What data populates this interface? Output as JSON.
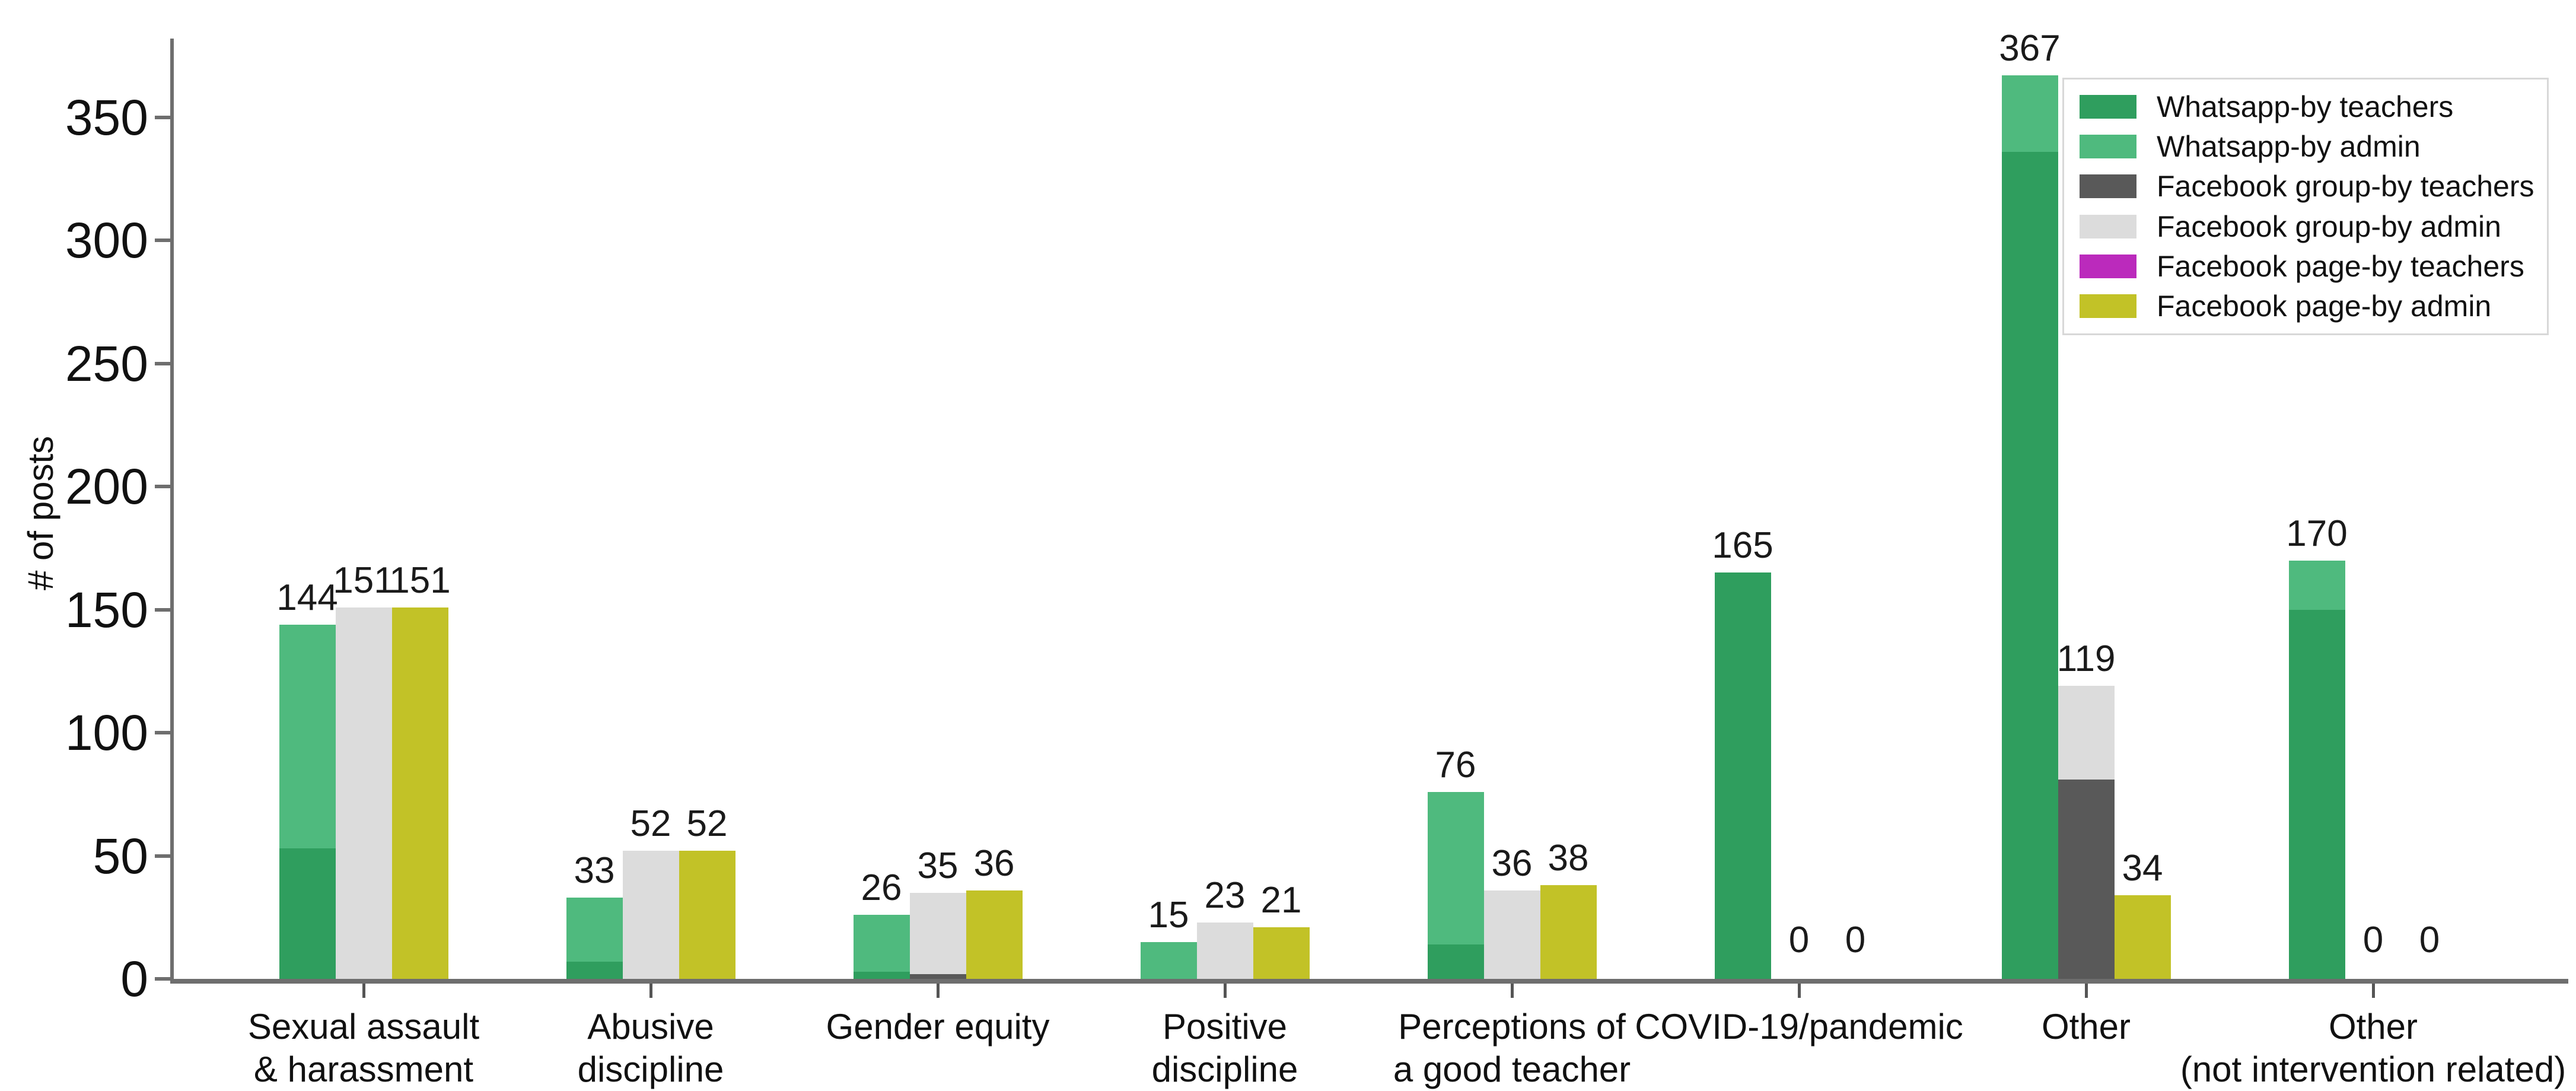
{
  "chart_data": {
    "type": "bar",
    "stacked": true,
    "title": "",
    "ylabel": "# of posts",
    "xlabel": "",
    "grid": false,
    "legend_position": "upper right",
    "yticks": [
      0,
      50,
      100,
      150,
      200,
      250,
      300,
      350
    ],
    "ylim": [
      0,
      390
    ],
    "categories": [
      [
        "Sexual assault",
        "& harassment"
      ],
      [
        "Abusive",
        "discipline"
      ],
      [
        "Gender equity"
      ],
      [
        "Positive",
        "discipline"
      ],
      [
        "Perceptions of",
        "a good teacher"
      ],
      [
        "COVID-19/pandemic"
      ],
      [
        "Other"
      ],
      [
        "Other",
        "(not intervention related)"
      ]
    ],
    "series": [
      {
        "name": "Whatsapp-by teachers",
        "color": "#2f9e5e",
        "values": [
          53,
          7,
          3,
          0,
          14,
          165,
          336,
          150
        ]
      },
      {
        "name": "Whatsapp-by admin",
        "color": "#4fba7e",
        "values": [
          91,
          26,
          23,
          15,
          62,
          0,
          31,
          20
        ]
      },
      {
        "name": "Facebook group-by teachers",
        "color": "#595959",
        "values": [
          0,
          0,
          2,
          0,
          0,
          0,
          81,
          0
        ]
      },
      {
        "name": "Facebook group-by admin",
        "color": "#dcdcdc",
        "values": [
          151,
          52,
          33,
          23,
          36,
          0,
          38,
          0
        ]
      },
      {
        "name": "Facebook page-by teachers",
        "color": "#bb2abc",
        "values": [
          0,
          0,
          0,
          0,
          0,
          0,
          0,
          0
        ]
      },
      {
        "name": "Facebook page-by admin",
        "color": "#c2c227",
        "values": [
          151,
          52,
          36,
          21,
          38,
          0,
          34,
          0
        ]
      }
    ],
    "bar_totals": {
      "whatsapp": [
        144,
        33,
        26,
        15,
        76,
        165,
        367,
        170
      ],
      "facebook_group": [
        151,
        52,
        35,
        23,
        36,
        0,
        119,
        0
      ],
      "facebook_page": [
        151,
        52,
        36,
        21,
        38,
        0,
        34,
        0
      ]
    }
  },
  "colors": {
    "axis": "#6e6e6e",
    "text": "#111111",
    "legend_border": "#d8d8d8",
    "background": "#ffffff"
  }
}
